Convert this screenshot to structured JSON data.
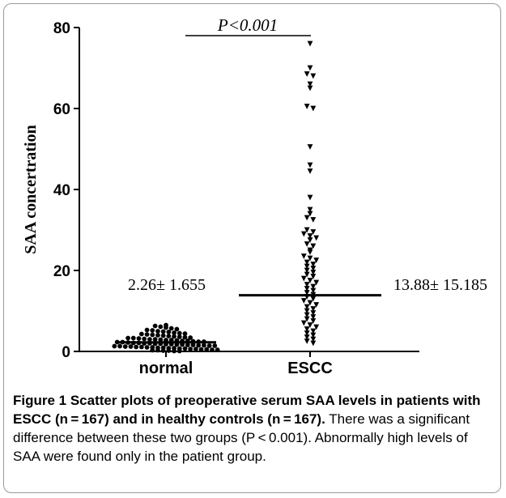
{
  "chart_data": {
    "type": "scatter",
    "title": "",
    "xlabel": "",
    "ylabel": "SAA concertration",
    "ylim": [
      0,
      80
    ],
    "y_ticks": [
      "0",
      "20",
      "40",
      "60",
      "80"
    ],
    "categories": [
      "normal",
      "ESCC"
    ],
    "significance_label": "P<0.001",
    "group_labels": [
      "2.26± 1.655",
      "13.88± 15.185"
    ],
    "series": [
      {
        "category": "normal",
        "n": 167,
        "mean": 2.26,
        "sd": 1.655,
        "marker": "circle",
        "values": [
          6.5,
          6.3,
          6.1,
          5.9,
          5.7,
          5.5,
          5.3,
          5.2,
          5.0,
          4.9,
          4.8,
          4.6,
          4.5,
          4.4,
          4.3,
          4.2,
          4.1,
          4.0,
          3.9,
          3.8,
          3.7,
          3.6,
          3.5,
          3.4,
          3.3,
          3.3,
          3.2,
          3.1,
          3.0,
          3.0,
          2.9,
          2.8,
          2.8,
          2.7,
          2.6,
          2.6,
          2.5,
          2.4,
          2.4,
          2.3,
          2.3,
          2.2,
          2.1,
          2.1,
          2.0,
          2.0,
          1.9,
          1.9,
          1.8,
          1.8,
          1.7,
          1.7,
          1.6,
          1.6,
          1.5,
          1.5,
          1.4,
          1.4,
          1.3,
          1.3,
          1.2,
          1.2,
          1.1,
          1.1,
          1.0,
          1.0,
          0.9,
          0.9,
          0.8,
          0.8,
          0.7,
          0.7,
          0.6,
          0.6,
          0.5,
          0.5,
          0.4,
          0.4,
          0.3,
          0.3,
          0.2,
          0.2,
          0.1,
          0.1
        ]
      },
      {
        "category": "ESCC",
        "n": 167,
        "mean": 13.88,
        "sd": 15.185,
        "marker": "triangle-down",
        "values": [
          76.0,
          70.0,
          68.5,
          68.0,
          66.0,
          65.0,
          60.5,
          60.0,
          50.5,
          46.0,
          44.5,
          38.0,
          35.0,
          34.0,
          33.0,
          32.5,
          30.0,
          29.5,
          29.0,
          28.5,
          28.0,
          27.5,
          26.5,
          26.0,
          25.0,
          24.5,
          23.5,
          23.0,
          22.5,
          22.0,
          21.5,
          21.0,
          20.5,
          20.0,
          19.5,
          19.0,
          18.5,
          18.0,
          17.5,
          17.0,
          16.5,
          16.0,
          15.5,
          15.0,
          14.5,
          14.0,
          13.5,
          13.0,
          12.5,
          12.0,
          11.5,
          11.0,
          10.5,
          10.0,
          9.5,
          9.0,
          8.5,
          8.0,
          7.5,
          7.0,
          6.5,
          6.0,
          5.5,
          5.0,
          4.5,
          4.0,
          3.5,
          3.0,
          2.5,
          2.0
        ]
      }
    ]
  },
  "caption": {
    "title": "Figure 1 Scatter plots of preoperative serum SAA levels in patients with ESCC (n = 167) and in healthy controls (n = 167).",
    "body": "There was a significant difference between these two groups (P < 0.001). Abnormally high levels of SAA were found only in the patient group."
  }
}
